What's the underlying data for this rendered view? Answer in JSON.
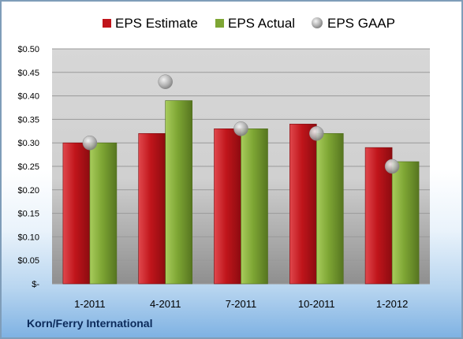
{
  "chart_data": {
    "type": "bar",
    "categories": [
      "1-2011",
      "4-2011",
      "7-2011",
      "10-2011",
      "1-2012"
    ],
    "series": [
      {
        "name": "EPS Estimate",
        "kind": "bar",
        "color": "#c0151b",
        "values": [
          0.3,
          0.32,
          0.33,
          0.34,
          0.29
        ]
      },
      {
        "name": "EPS Actual",
        "kind": "bar",
        "color": "#7ea634",
        "values": [
          0.3,
          0.39,
          0.33,
          0.32,
          0.26
        ]
      },
      {
        "name": "EPS GAAP",
        "kind": "marker",
        "color": "#a8a8a8",
        "values": [
          0.3,
          0.43,
          0.33,
          0.32,
          0.25
        ]
      }
    ],
    "yticks": [
      0,
      0.05,
      0.1,
      0.15,
      0.2,
      0.25,
      0.3,
      0.35,
      0.4,
      0.45,
      0.5
    ],
    "ytick_labels": [
      "$-",
      "$0.05",
      "$0.10",
      "$0.15",
      "$0.20",
      "$0.25",
      "$0.30",
      "$0.35",
      "$0.40",
      "$0.45",
      "$0.50"
    ],
    "ylim": [
      0,
      0.5
    ],
    "grid": true,
    "legend_position": "top"
  },
  "company": "Korn/Ferry International"
}
